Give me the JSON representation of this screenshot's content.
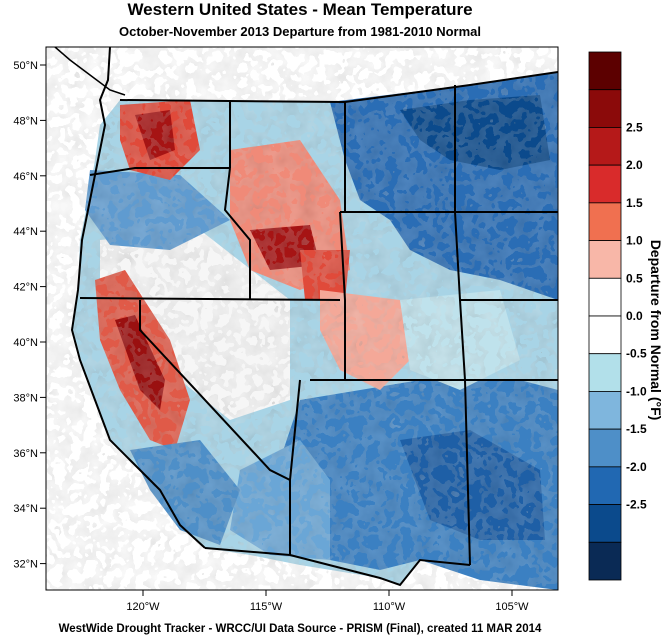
{
  "title": "Western United States - Mean Temperature",
  "subtitle": "October-November 2013  Departure from 1981-2010 Normal",
  "footer": "WestWide Drought Tracker - WRCC/UI  Data Source - PRISM (Final), created 11 MAR 2014",
  "lat_labels": [
    "50°N",
    "48°N",
    "46°N",
    "44°N",
    "42°N",
    "40°N",
    "38°N",
    "36°N",
    "34°N",
    "32°N"
  ],
  "lon_labels": [
    "120°W",
    "115°W",
    "110°W",
    "105°W"
  ],
  "colorbar": {
    "title": "Departure from Normal (°F)",
    "labels": [
      "2.5",
      "2.0",
      "1.5",
      "1.0",
      "0.5",
      "0.0",
      "-0.5",
      "-1.0",
      "-1.5",
      "-2.0",
      "-2.5"
    ],
    "colors": [
      "#5c0000",
      "#8b0a0a",
      "#b51919",
      "#d92b2b",
      "#f07050",
      "#f8b7a8",
      "#ffffff",
      "#ffffff",
      "#b2e0ea",
      "#7fb6dd",
      "#4e8fc8",
      "#2168b2",
      "#0b4a8c",
      "#0a2a55"
    ]
  }
}
